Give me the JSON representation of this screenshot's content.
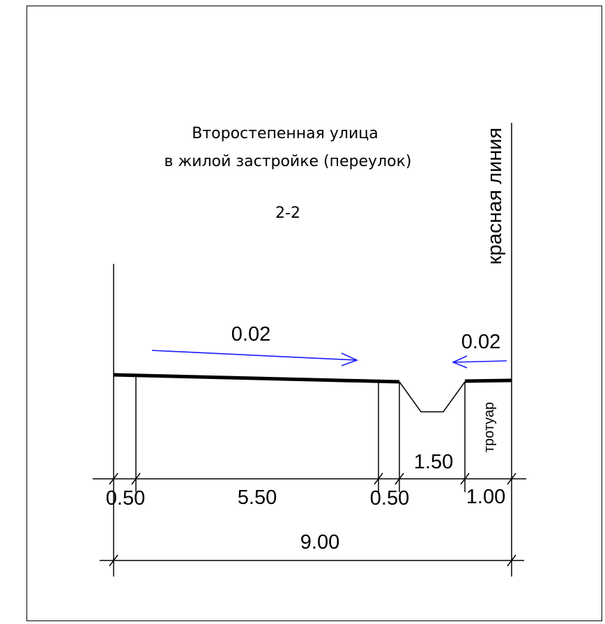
{
  "title": {
    "line1": "Второстепенная улица",
    "line2": "в жилой застройке (переулок)"
  },
  "section_mark": "2-2",
  "red_line_label": "красная линия",
  "sidewalk_label": "тротуар",
  "slopes": {
    "left": "0.02",
    "right": "0.02"
  },
  "dimensions": {
    "segments": [
      "0.50",
      "5.50",
      "0.50",
      "1.50",
      "1.00"
    ],
    "total": "9.00"
  },
  "colors": {
    "line": "#000000",
    "arrow": "#1a1aff",
    "frame": "#000000"
  }
}
